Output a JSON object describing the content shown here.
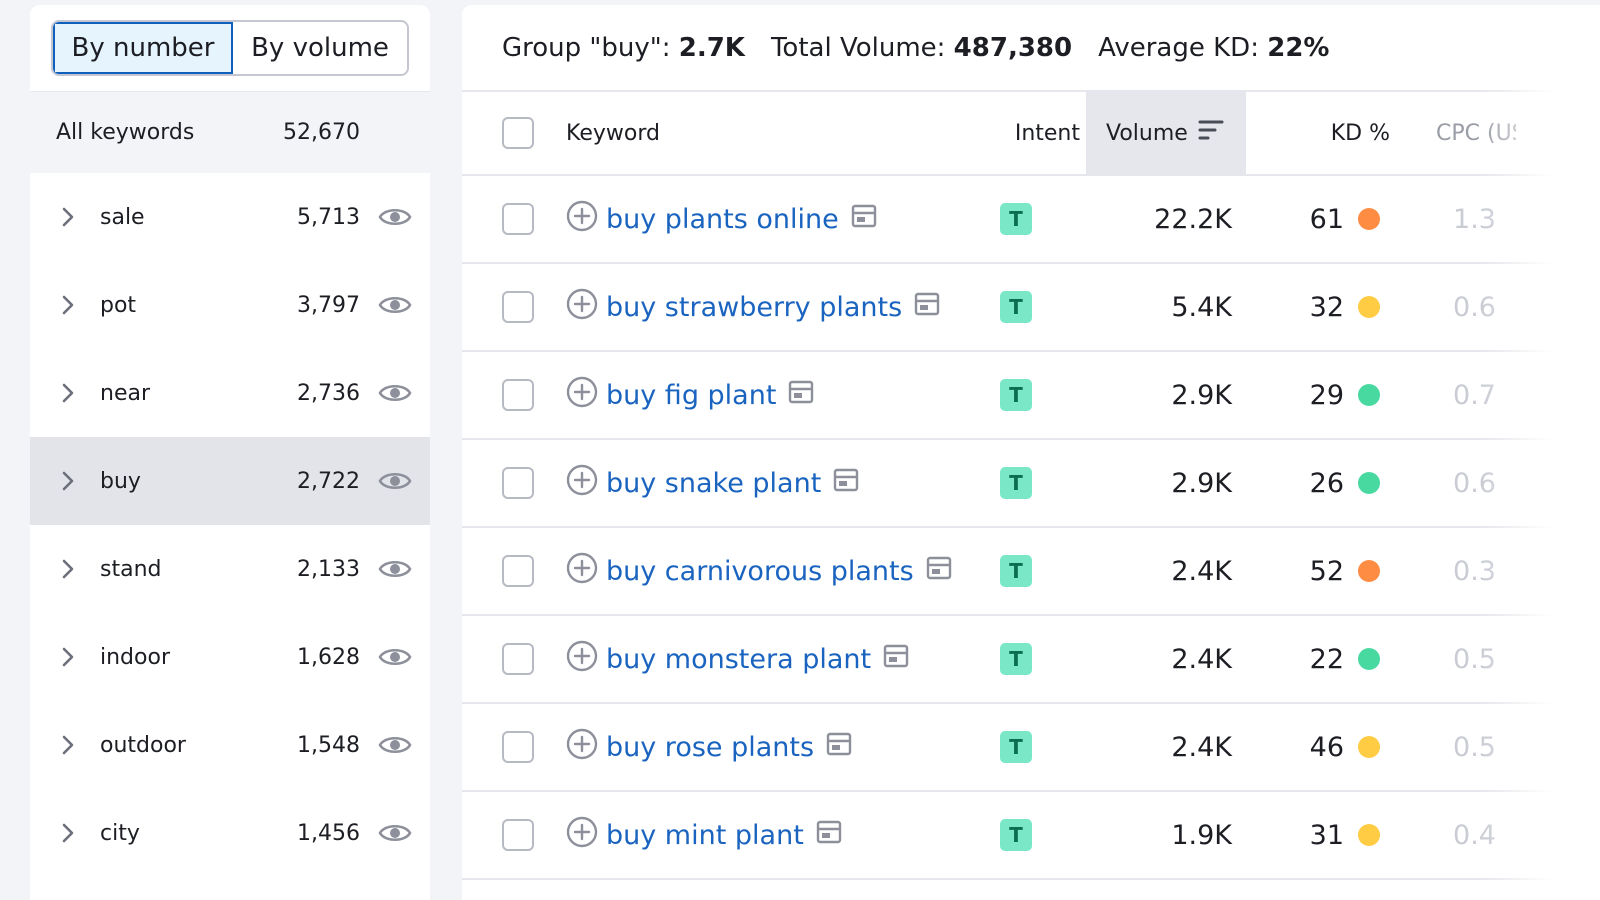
{
  "toggle": {
    "by_number": "By number",
    "by_volume": "By volume"
  },
  "all_keywords": {
    "label": "All keywords",
    "count": "52,670"
  },
  "groups": [
    {
      "name": "sale",
      "count": "5,713"
    },
    {
      "name": "pot",
      "count": "3,797"
    },
    {
      "name": "near",
      "count": "2,736"
    },
    {
      "name": "buy",
      "count": "2,722",
      "selected": true
    },
    {
      "name": "stand",
      "count": "2,133"
    },
    {
      "name": "indoor",
      "count": "1,628"
    },
    {
      "name": "outdoor",
      "count": "1,548"
    },
    {
      "name": "city",
      "count": "1,456"
    }
  ],
  "summary": {
    "group_label": "Group \"buy\":",
    "group_value": "2.7K",
    "volume_label": "Total Volume:",
    "volume_value": "487,380",
    "kd_label": "Average KD:",
    "kd_value": "22%"
  },
  "table": {
    "headers": {
      "keyword": "Keyword",
      "intent": "Intent",
      "volume": "Volume",
      "kd": "KD %",
      "cpc": "CPC (USD"
    },
    "rows": [
      {
        "keyword": "buy plants online",
        "intent": "T",
        "volume": "22.2K",
        "kd": "61",
        "kd_color": "#ff8c43",
        "cpc": "1.3"
      },
      {
        "keyword": "buy strawberry plants",
        "intent": "T",
        "volume": "5.4K",
        "kd": "32",
        "kd_color": "#ffcc44",
        "cpc": "0.6"
      },
      {
        "keyword": "buy fig plant",
        "intent": "T",
        "volume": "2.9K",
        "kd": "29",
        "kd_color": "#48d9a0",
        "cpc": "0.7"
      },
      {
        "keyword": "buy snake plant",
        "intent": "T",
        "volume": "2.9K",
        "kd": "26",
        "kd_color": "#48d9a0",
        "cpc": "0.6"
      },
      {
        "keyword": "buy carnivorous plants",
        "intent": "T",
        "volume": "2.4K",
        "kd": "52",
        "kd_color": "#ff8c43",
        "cpc": "0.3"
      },
      {
        "keyword": "buy monstera plant",
        "intent": "T",
        "volume": "2.4K",
        "kd": "22",
        "kd_color": "#48d9a0",
        "cpc": "0.5"
      },
      {
        "keyword": "buy rose plants",
        "intent": "T",
        "volume": "2.4K",
        "kd": "46",
        "kd_color": "#ffcc44",
        "cpc": "0.5"
      },
      {
        "keyword": "buy mint plant",
        "intent": "T",
        "volume": "1.9K",
        "kd": "31",
        "kd_color": "#ffcc44",
        "cpc": "0.4"
      }
    ]
  },
  "colors": {
    "link": "#1a64c0",
    "intent_transactional": "#7ae7c7",
    "toggle_active_border": "#0f5fbd"
  }
}
